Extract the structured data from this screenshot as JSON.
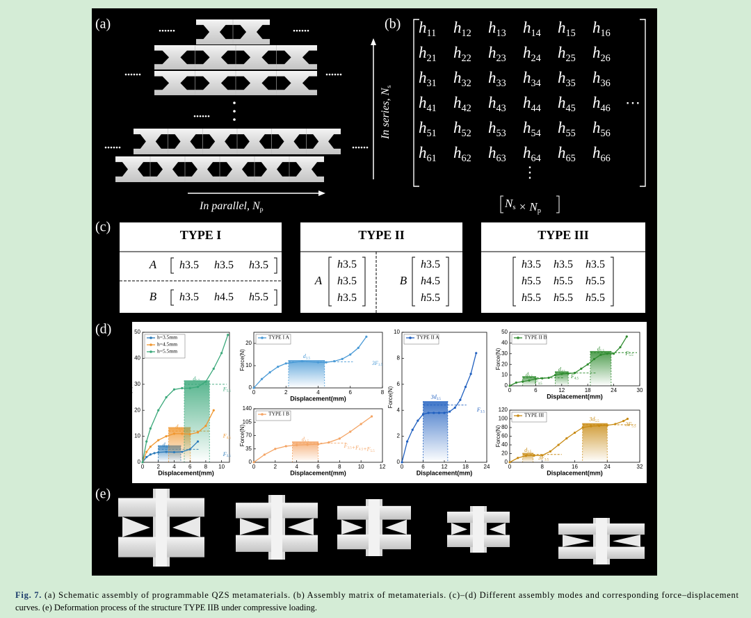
{
  "panel_labels": [
    "(a)",
    "(b)",
    "(c)",
    "(d)",
    "(e)"
  ],
  "panel_a": {
    "ellipsis": "......",
    "parallel": [
      [
        "In parallel, N",
        "p"
      ]
    ],
    "series": [
      [
        "In series, N",
        "s"
      ]
    ]
  },
  "panel_b": {
    "matrix": [
      [
        [
          "h",
          "11"
        ],
        [
          "h",
          "12"
        ],
        [
          "h",
          "13"
        ],
        [
          "h",
          "14"
        ],
        [
          "h",
          "15"
        ],
        [
          "h",
          "16"
        ]
      ],
      [
        [
          "h",
          "21"
        ],
        [
          "h",
          "22"
        ],
        [
          "h",
          "23"
        ],
        [
          "h",
          "24"
        ],
        [
          "h",
          "25"
        ],
        [
          "h",
          "26"
        ]
      ],
      [
        [
          "h",
          "31"
        ],
        [
          "h",
          "32"
        ],
        [
          "h",
          "33"
        ],
        [
          "h",
          "34"
        ],
        [
          "h",
          "35"
        ],
        [
          "h",
          "36"
        ]
      ],
      [
        [
          "h",
          "41"
        ],
        [
          "h",
          "42"
        ],
        [
          "h",
          "43"
        ],
        [
          "h",
          "44"
        ],
        [
          "h",
          "45"
        ],
        [
          "h",
          "46"
        ]
      ],
      [
        [
          "h",
          "51"
        ],
        [
          "h",
          "52"
        ],
        [
          "h",
          "53"
        ],
        [
          "h",
          "54"
        ],
        [
          "h",
          "55"
        ],
        [
          "h",
          "56"
        ]
      ],
      [
        [
          "h",
          "61"
        ],
        [
          "h",
          "62"
        ],
        [
          "h",
          "63"
        ],
        [
          "h",
          "64"
        ],
        [
          "h",
          "65"
        ],
        [
          "h",
          "66"
        ]
      ]
    ],
    "hdots": "⋯",
    "vdots": "⋮",
    "dimension": [
      [
        "N",
        "s"
      ],
      [
        " × N",
        "p"
      ]
    ]
  },
  "panel_c": {
    "types": [
      {
        "title": "TYPE I",
        "groups": [
          {
            "label": "A",
            "matrix": [
              [
                [
                  "h",
                  "3.5"
                ],
                [
                  "h",
                  "3.5"
                ],
                [
                  "h",
                  "3.5"
                ]
              ]
            ]
          },
          {
            "label": "B",
            "matrix": [
              [
                [
                  "h",
                  "3.5"
                ],
                [
                  "h",
                  "4.5"
                ],
                [
                  "h",
                  "5.5"
                ]
              ]
            ]
          }
        ]
      },
      {
        "title": "TYPE II",
        "groups": [
          {
            "label": "A",
            "matrix": [
              [
                [
                  "h",
                  "3.5"
                ]
              ],
              [
                [
                  "h",
                  "3.5"
                ]
              ],
              [
                [
                  "h",
                  "3.5"
                ]
              ]
            ]
          },
          {
            "label": "B",
            "matrix": [
              [
                [
                  "h",
                  "3.5"
                ]
              ],
              [
                [
                  "h",
                  "4.5"
                ]
              ],
              [
                [
                  "h",
                  "5.5"
                ]
              ]
            ]
          }
        ]
      },
      {
        "title": "TYPE III",
        "groups": [
          {
            "matrix": [
              [
                [
                  "h",
                  "3.5"
                ],
                [
                  "h",
                  "3.5"
                ],
                [
                  "h",
                  "3.5"
                ]
              ],
              [
                [
                  "h",
                  "5.5"
                ],
                [
                  "h",
                  "5.5"
                ],
                [
                  "h",
                  "5.5"
                ]
              ],
              [
                [
                  "h",
                  "5.5"
                ],
                [
                  "h",
                  "5.5"
                ],
                [
                  "h",
                  "5.5"
                ]
              ]
            ]
          }
        ]
      }
    ]
  },
  "chart_data": [
    {
      "type": "line",
      "xlabel": "Displacement(mm)",
      "ylabel": "Force(N)",
      "xlim": [
        0,
        11
      ],
      "ylim": [
        0,
        50
      ],
      "xticks": [
        0,
        2,
        4,
        6,
        8,
        10
      ],
      "yticks": [
        0,
        10,
        20,
        30,
        40,
        50
      ],
      "series": [
        {
          "name": "h=3.5mm",
          "color": "#2b7bba",
          "x": [
            0,
            0.5,
            1,
            1.5,
            2,
            3,
            4,
            5,
            6,
            7
          ],
          "values": [
            0,
            2,
            3,
            3.5,
            3.8,
            4,
            3.9,
            4,
            5,
            8
          ]
        },
        {
          "name": "h=4.5mm",
          "color": "#f0962e",
          "x": [
            0,
            0.5,
            1,
            2,
            3,
            4,
            5,
            6,
            7,
            8,
            9
          ],
          "values": [
            0,
            4,
            6,
            8.5,
            10,
            11,
            11,
            10.8,
            11.5,
            14,
            20
          ]
        },
        {
          "name": "h=5.5mm",
          "color": "#3aa87a",
          "x": [
            0,
            0.5,
            1,
            2,
            3,
            4,
            5,
            6,
            7,
            8,
            9,
            10,
            10.8
          ],
          "values": [
            0,
            8,
            13,
            20,
            25,
            28,
            28.5,
            28.5,
            29,
            31,
            36,
            42,
            49
          ]
        }
      ],
      "annotations": [
        [
          [
            "d",
            "3.5"
          ]
        ],
        [
          [
            "d",
            "4.5"
          ]
        ],
        [
          [
            "d",
            "5.5"
          ]
        ],
        [
          [
            "F",
            "3.5"
          ]
        ],
        [
          [
            "F",
            "4.5"
          ]
        ],
        [
          [
            "F",
            "5.5"
          ]
        ]
      ]
    },
    {
      "type": "line",
      "xlabel": "Displacement(mm)",
      "ylabel": "Force(N)",
      "xlim": [
        0,
        8
      ],
      "ylim": [
        0,
        25
      ],
      "xticks": [
        0,
        2,
        4,
        6,
        8
      ],
      "yticks": [
        0,
        10,
        20
      ],
      "series": [
        {
          "name": "TYPE I A",
          "color": "#4a9ad6",
          "x": [
            0,
            0.5,
            1,
            1.5,
            2,
            3,
            4,
            4.5,
            5,
            5.5,
            6,
            6.5,
            7
          ],
          "values": [
            0,
            4,
            7,
            9.5,
            11,
            12,
            11.5,
            11.5,
            12,
            13,
            15,
            18,
            23
          ]
        }
      ],
      "annotations": [
        [
          [
            "d",
            "3.5"
          ]
        ],
        [
          [
            "3F",
            "3.5"
          ]
        ]
      ]
    },
    {
      "type": "line",
      "xlabel": "Displacement(mm)",
      "ylabel": "Force(N)",
      "xlim": [
        0,
        12
      ],
      "ylim": [
        0,
        140
      ],
      "xticks": [
        0,
        2,
        4,
        6,
        8,
        10,
        12
      ],
      "yticks": [
        0,
        35,
        70,
        105,
        140
      ],
      "series": [
        {
          "name": "TYPE I B",
          "color": "#f4a464",
          "x": [
            0,
            1,
            2,
            3,
            4,
            5,
            6,
            7,
            8,
            9,
            10,
            11
          ],
          "values": [
            0,
            20,
            35,
            42,
            45,
            46,
            47,
            52,
            62,
            80,
            100,
            120
          ]
        }
      ],
      "annotations": [
        [
          [
            "d",
            "4.5"
          ]
        ],
        [
          [
            "F",
            "3.5"
          ],
          [
            "+F",
            "4.5"
          ],
          [
            "+F",
            "5.5"
          ]
        ]
      ]
    },
    {
      "type": "line",
      "xlabel": "Displacement(mm)",
      "ylabel": "Force(N)",
      "xlim": [
        0,
        24
      ],
      "ylim": [
        0,
        10
      ],
      "xticks": [
        0,
        6,
        12,
        18,
        24
      ],
      "yticks": [
        0,
        2,
        4,
        6,
        8,
        10
      ],
      "series": [
        {
          "name": "TYPE II A",
          "color": "#1f5fbf",
          "x": [
            0,
            1.5,
            3,
            4.5,
            6,
            7.5,
            9,
            10.5,
            12,
            13.5,
            15,
            16.5,
            18,
            19.5,
            21
          ],
          "values": [
            0,
            1.6,
            2.5,
            3.2,
            3.7,
            3.8,
            3.8,
            3.8,
            3.8,
            3.9,
            4.2,
            4.8,
            5.8,
            6.8,
            8.4
          ]
        }
      ],
      "annotations": [
        [
          [
            "3d",
            "3.5"
          ]
        ],
        [
          [
            "F",
            "3.5"
          ]
        ]
      ]
    },
    {
      "type": "line",
      "xlabel": "Displacement(mm)",
      "ylabel": "Force(N)",
      "xlim": [
        0,
        30
      ],
      "ylim": [
        0,
        50
      ],
      "xticks": [
        0,
        6,
        12,
        18,
        24,
        30
      ],
      "yticks": [
        0,
        10,
        20,
        30,
        40,
        50
      ],
      "series": [
        {
          "name": "TYPE II B",
          "color": "#2e8b2e",
          "x": [
            0,
            1.5,
            3,
            4.5,
            6,
            7.5,
            9,
            10.5,
            12,
            13.5,
            15,
            16.5,
            18,
            19.5,
            21,
            22.5,
            24,
            25.5,
            27
          ],
          "values": [
            0,
            3,
            4,
            5,
            6.5,
            7,
            7.5,
            10,
            11,
            11.5,
            12,
            16,
            20,
            25,
            29,
            30,
            30,
            36,
            46
          ]
        }
      ],
      "annotations": [
        [
          [
            "d",
            "3.5"
          ]
        ],
        [
          [
            "d",
            "4.5"
          ]
        ],
        [
          [
            "d",
            "5.5"
          ]
        ],
        [
          [
            "F",
            "3.5"
          ]
        ],
        [
          [
            "F",
            "4.5"
          ]
        ],
        [
          [
            "F",
            "5.5"
          ]
        ]
      ]
    },
    {
      "type": "line",
      "xlabel": "Displacement(mm)",
      "ylabel": "Force(N)",
      "xlim": [
        0,
        32
      ],
      "ylim": [
        0,
        120
      ],
      "xticks": [
        0,
        8,
        16,
        24,
        32
      ],
      "yticks": [
        0,
        20,
        40,
        60,
        80,
        100,
        120
      ],
      "series": [
        {
          "name": "TYPE III",
          "color": "#c88a12",
          "x": [
            0,
            2,
            4,
            6,
            8,
            10,
            12,
            14,
            16,
            18,
            20,
            22,
            24,
            26,
            28,
            29
          ],
          "values": [
            0,
            10,
            15,
            15.5,
            16,
            25,
            40,
            55,
            68,
            80,
            83,
            84,
            85,
            88,
            95,
            100
          ]
        }
      ],
      "annotations": [
        [
          [
            "d",
            "3.5"
          ]
        ],
        [
          [
            "3F",
            "3.5"
          ]
        ],
        [
          [
            "3d",
            "5.5"
          ]
        ],
        [
          [
            "3F",
            "5.5"
          ]
        ]
      ]
    }
  ],
  "caption": {
    "label": "Fig. 7.",
    "lines": [
      "(a) Schematic assembly of programmable QZS metamaterials. (b) Assembly matrix of metamaterials. (c)–(d) Different assembly modes and corresponding force–displacement",
      "curves. (e) Deformation process of the structure TYPE IIB under compressive loading."
    ]
  }
}
